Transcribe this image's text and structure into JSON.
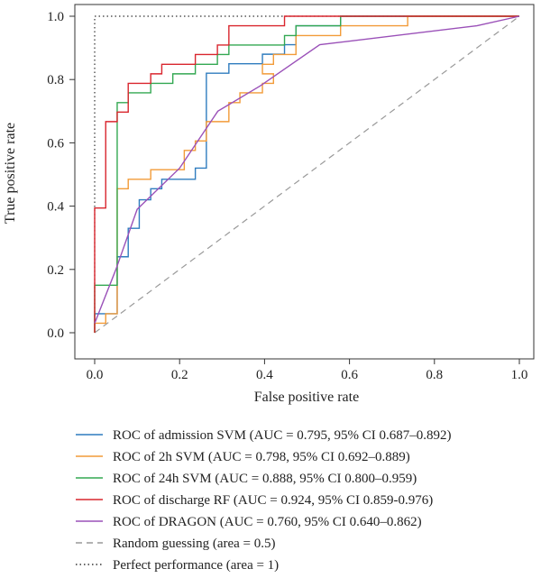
{
  "chart_data": {
    "type": "line",
    "title": "",
    "xlabel": "False positive rate",
    "ylabel": "True positive rate",
    "xlim": [
      0,
      1
    ],
    "ylim": [
      0,
      1
    ],
    "xticks": [
      "0.0",
      "0.2",
      "0.4",
      "0.6",
      "0.8",
      "1.0"
    ],
    "yticks": [
      "0.0",
      "0.2",
      "0.4",
      "0.6",
      "0.8",
      "1.0"
    ],
    "grid": false,
    "legend_position": "bottom",
    "series": [
      {
        "name": "ROC of admission SVM (AUC = 0.795, 95% CI 0.687–0.892)",
        "color": "#2f7cbf",
        "style": "solid",
        "points": [
          [
            0,
            0
          ],
          [
            0,
            0.06
          ],
          [
            0.053,
            0.06
          ],
          [
            0.053,
            0.24
          ],
          [
            0.079,
            0.24
          ],
          [
            0.079,
            0.33
          ],
          [
            0.105,
            0.33
          ],
          [
            0.105,
            0.42
          ],
          [
            0.132,
            0.42
          ],
          [
            0.132,
            0.455
          ],
          [
            0.158,
            0.455
          ],
          [
            0.158,
            0.485
          ],
          [
            0.237,
            0.485
          ],
          [
            0.237,
            0.52
          ],
          [
            0.263,
            0.52
          ],
          [
            0.263,
            0.82
          ],
          [
            0.316,
            0.82
          ],
          [
            0.316,
            0.85
          ],
          [
            0.395,
            0.85
          ],
          [
            0.395,
            0.88
          ],
          [
            0.447,
            0.88
          ],
          [
            0.447,
            0.91
          ],
          [
            0.474,
            0.91
          ],
          [
            0.474,
            0.97
          ],
          [
            0.579,
            0.97
          ],
          [
            0.579,
            1.0
          ],
          [
            1,
            1
          ]
        ]
      },
      {
        "name": "ROC of 2h SVM (AUC = 0.798, 95% CI 0.692–0.889)",
        "color": "#f29b38",
        "style": "solid",
        "points": [
          [
            0,
            0
          ],
          [
            0,
            0.03
          ],
          [
            0.026,
            0.03
          ],
          [
            0.026,
            0.06
          ],
          [
            0.053,
            0.06
          ],
          [
            0.053,
            0.455
          ],
          [
            0.079,
            0.455
          ],
          [
            0.079,
            0.485
          ],
          [
            0.132,
            0.485
          ],
          [
            0.132,
            0.515
          ],
          [
            0.211,
            0.515
          ],
          [
            0.211,
            0.576
          ],
          [
            0.237,
            0.576
          ],
          [
            0.237,
            0.606
          ],
          [
            0.263,
            0.606
          ],
          [
            0.263,
            0.667
          ],
          [
            0.316,
            0.667
          ],
          [
            0.316,
            0.727
          ],
          [
            0.342,
            0.727
          ],
          [
            0.342,
            0.758
          ],
          [
            0.395,
            0.758
          ],
          [
            0.395,
            0.788
          ],
          [
            0.421,
            0.788
          ],
          [
            0.421,
            0.818
          ],
          [
            0.395,
            0.818
          ],
          [
            0.395,
            0.848
          ],
          [
            0.421,
            0.848
          ],
          [
            0.421,
            0.879
          ],
          [
            0.474,
            0.879
          ],
          [
            0.474,
            0.939
          ],
          [
            0.579,
            0.939
          ],
          [
            0.579,
            0.97
          ],
          [
            0.737,
            0.97
          ],
          [
            0.737,
            1.0
          ],
          [
            1,
            1
          ]
        ]
      },
      {
        "name": "ROC of 24h SVM (AUC = 0.888, 95% CI 0.800–0.959)",
        "color": "#33a852",
        "style": "solid",
        "points": [
          [
            0,
            0
          ],
          [
            0,
            0.15
          ],
          [
            0.053,
            0.15
          ],
          [
            0.053,
            0.727
          ],
          [
            0.079,
            0.727
          ],
          [
            0.079,
            0.758
          ],
          [
            0.132,
            0.758
          ],
          [
            0.132,
            0.788
          ],
          [
            0.184,
            0.788
          ],
          [
            0.184,
            0.818
          ],
          [
            0.237,
            0.818
          ],
          [
            0.237,
            0.848
          ],
          [
            0.289,
            0.848
          ],
          [
            0.289,
            0.879
          ],
          [
            0.316,
            0.879
          ],
          [
            0.316,
            0.909
          ],
          [
            0.447,
            0.909
          ],
          [
            0.447,
            0.939
          ],
          [
            0.474,
            0.939
          ],
          [
            0.474,
            0.97
          ],
          [
            0.579,
            0.97
          ],
          [
            0.579,
            1.0
          ],
          [
            1,
            1
          ]
        ]
      },
      {
        "name": "ROC of discharge RF (AUC = 0.924, 95% CI 0.859-0.976)",
        "color": "#d9262e",
        "style": "solid",
        "points": [
          [
            0,
            0
          ],
          [
            0,
            0.394
          ],
          [
            0.026,
            0.394
          ],
          [
            0.026,
            0.667
          ],
          [
            0.053,
            0.667
          ],
          [
            0.053,
            0.697
          ],
          [
            0.079,
            0.697
          ],
          [
            0.079,
            0.788
          ],
          [
            0.132,
            0.788
          ],
          [
            0.132,
            0.818
          ],
          [
            0.158,
            0.818
          ],
          [
            0.158,
            0.848
          ],
          [
            0.237,
            0.848
          ],
          [
            0.237,
            0.879
          ],
          [
            0.289,
            0.879
          ],
          [
            0.289,
            0.909
          ],
          [
            0.316,
            0.909
          ],
          [
            0.316,
            0.97
          ],
          [
            0.447,
            0.97
          ],
          [
            0.447,
            1.0
          ],
          [
            1,
            1
          ]
        ]
      },
      {
        "name": "ROC of DRAGON (AUC = 0.760, 95% CI 0.640–0.862)",
        "color": "#9a50b8",
        "style": "solid",
        "points": [
          [
            0,
            0.03
          ],
          [
            0.05,
            0.2
          ],
          [
            0.1,
            0.39
          ],
          [
            0.2,
            0.52
          ],
          [
            0.29,
            0.7
          ],
          [
            0.39,
            0.78
          ],
          [
            0.53,
            0.91
          ],
          [
            0.9,
            0.97
          ],
          [
            1,
            1
          ]
        ]
      },
      {
        "name": "Random guessing (area = 0.5)",
        "color": "#999999",
        "style": "dashed",
        "points": [
          [
            0,
            0
          ],
          [
            1,
            1
          ]
        ]
      },
      {
        "name": "Perfect performance (area = 1)",
        "color": "#333333",
        "style": "dotted",
        "points": [
          [
            0,
            0
          ],
          [
            0,
            1
          ],
          [
            1,
            1
          ]
        ]
      }
    ]
  }
}
